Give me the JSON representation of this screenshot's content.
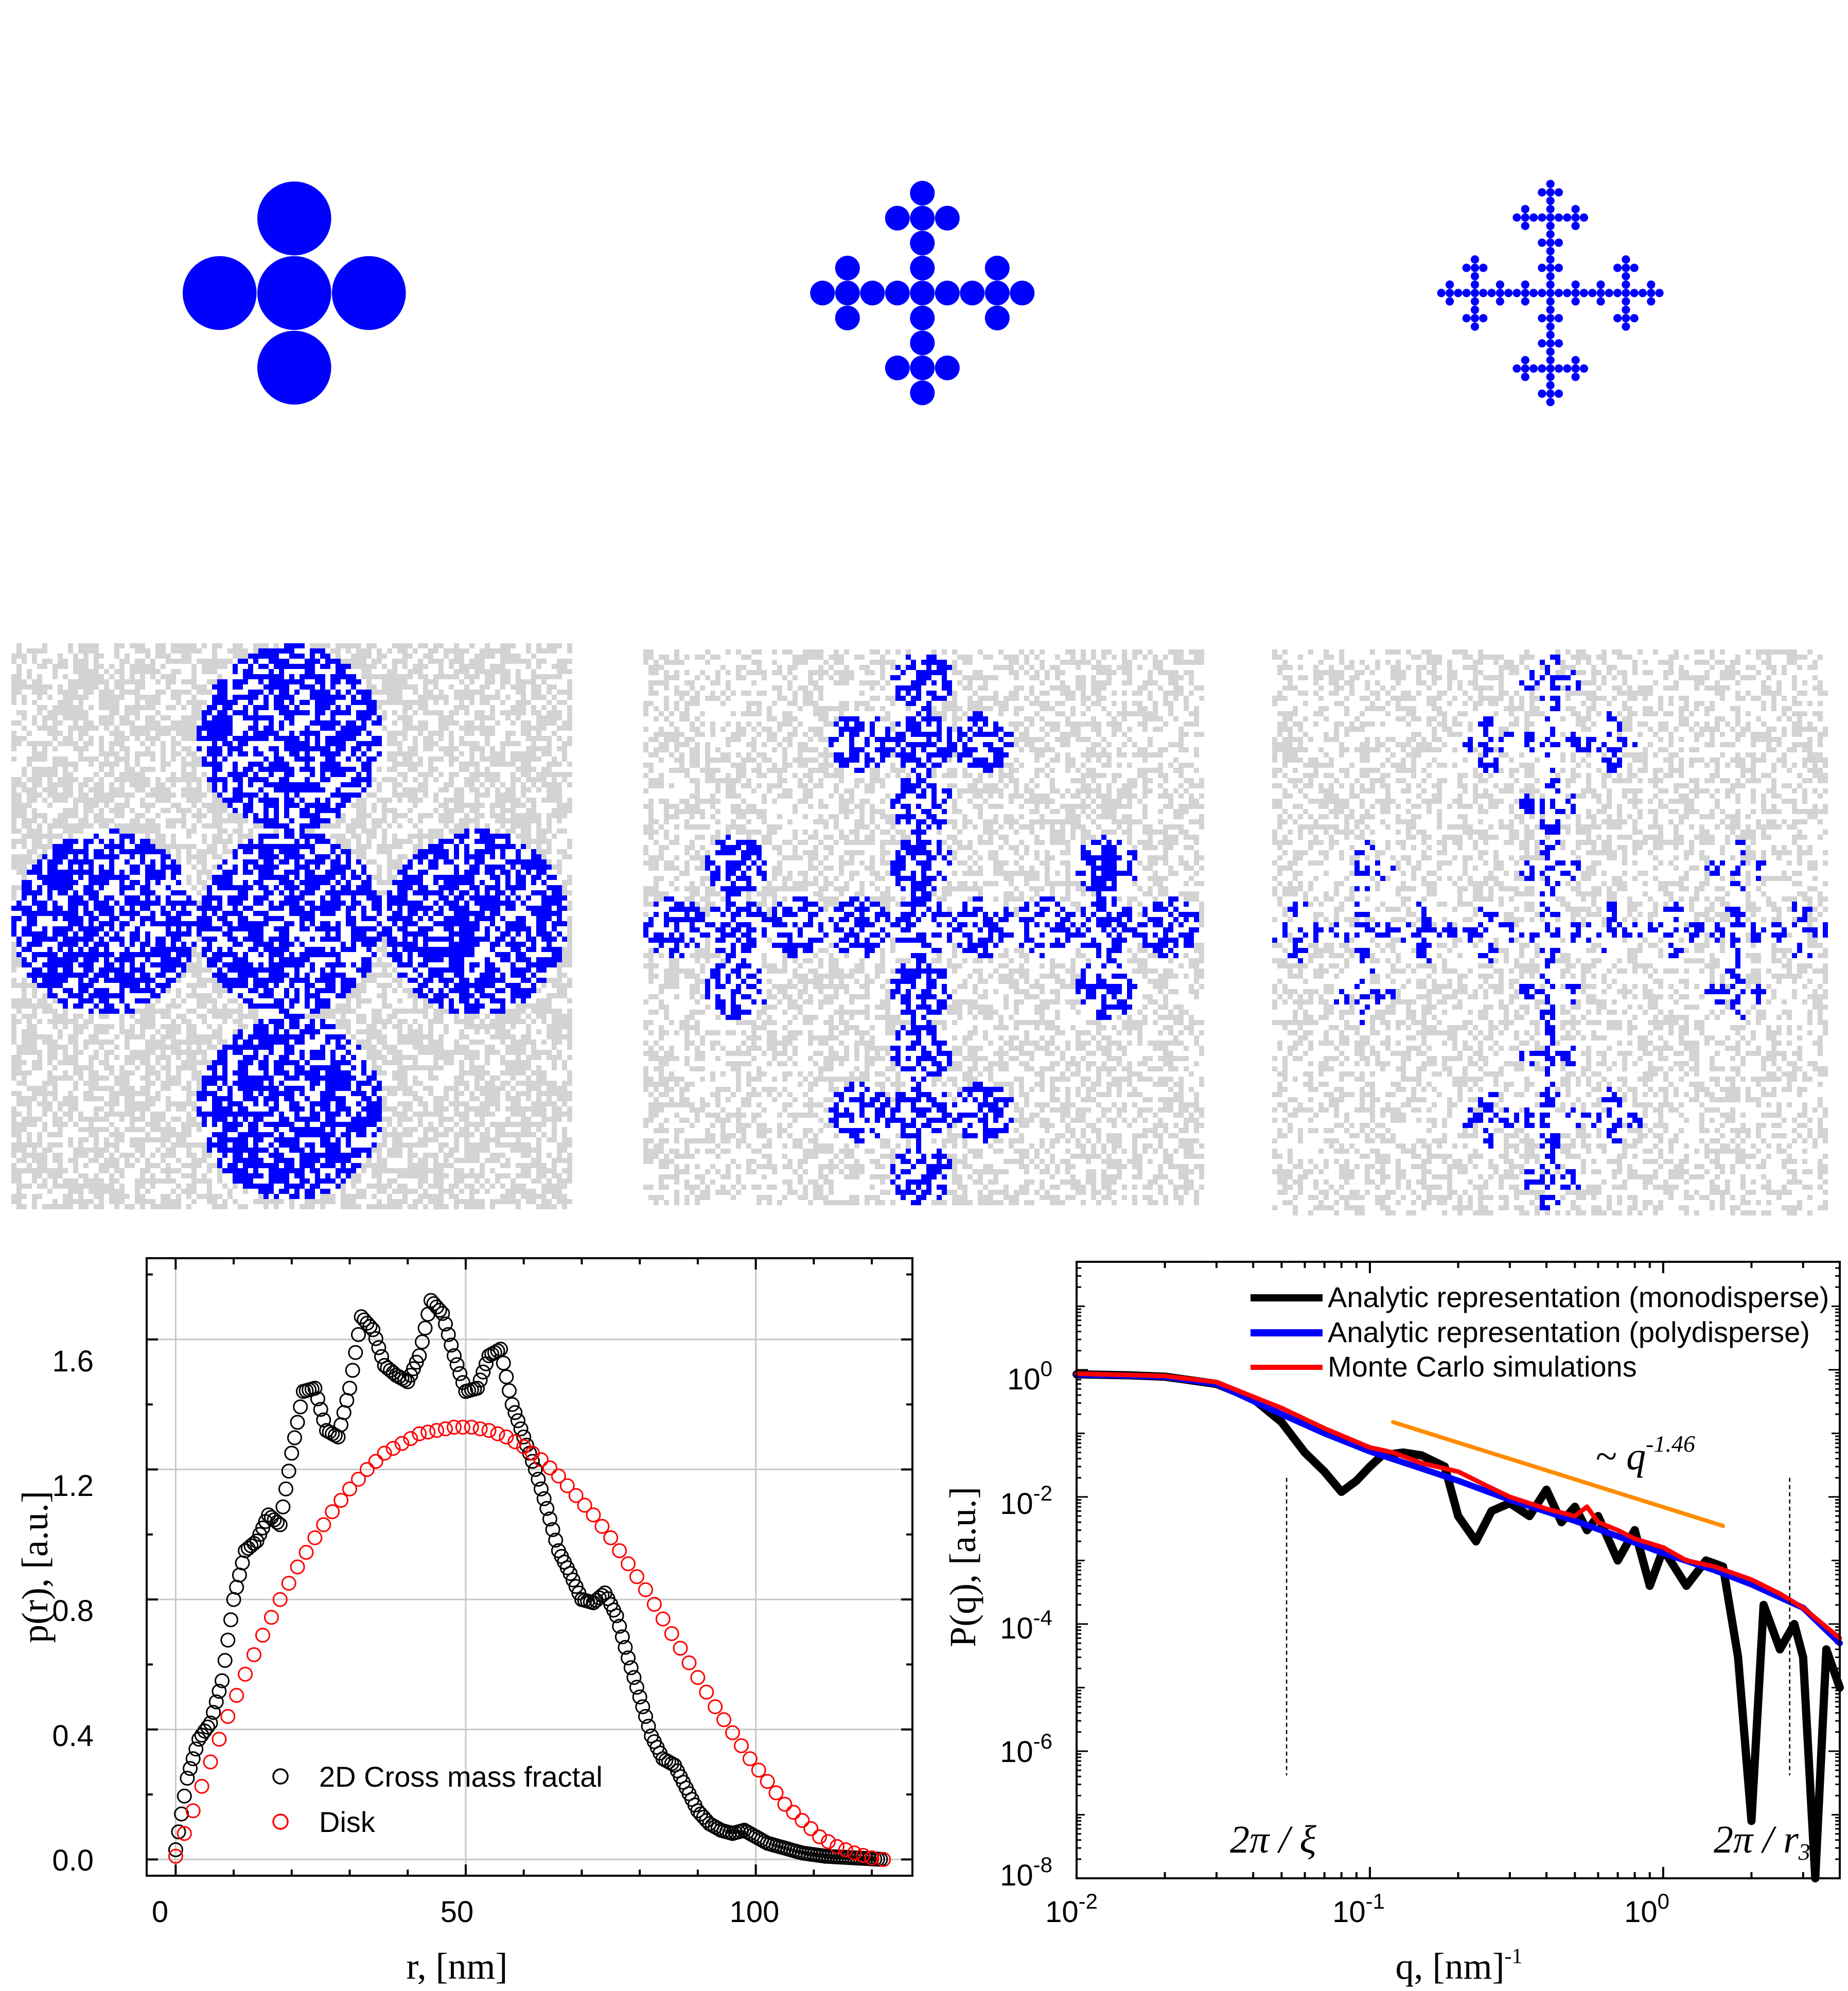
{
  "colors": {
    "fractal": "#0000ff",
    "noise": "#d3d3d3",
    "grid": "#c8c8c8",
    "black": "#000000",
    "red": "#ff0000",
    "blue": "#0000ff",
    "orange": "#ff8c00"
  },
  "panels": {
    "top_row": [
      "Cross mass fractal, iteration 1",
      "Cross mass fractal, iteration 2",
      "Cross mass fractal, iteration 3"
    ],
    "middle_row": [
      "Monte Carlo points, iteration 1",
      "Monte Carlo points, iteration 2",
      "Monte Carlo points, iteration 3"
    ]
  },
  "chart_data": [
    {
      "type": "scatter",
      "title": "",
      "xlabel": "r, [nm]",
      "ylabel": "p(r), [a.u.]",
      "xlim": [
        -5,
        127
      ],
      "ylim": [
        -0.05,
        1.85
      ],
      "xticks": [
        "0",
        "50",
        "100"
      ],
      "yticks": [
        "0.0",
        "0.4",
        "0.8",
        "1.2",
        "1.6"
      ],
      "grid": true,
      "legend_position": "bottom-left",
      "series": [
        {
          "name": "2D Cross mass fractal",
          "marker": "open-circle",
          "color": "#000000",
          "x": [
            0,
            2,
            4,
            6,
            8,
            10,
            12,
            14,
            16,
            18,
            20,
            22,
            24,
            26,
            28,
            30,
            32,
            34,
            36,
            38,
            40,
            42,
            44,
            46,
            48,
            50,
            52,
            54,
            56,
            58,
            60,
            62,
            64,
            66,
            68,
            70,
            72,
            74,
            76,
            78,
            80,
            82,
            84,
            86,
            88,
            90,
            92,
            94,
            96,
            98,
            100,
            102,
            104,
            106,
            108,
            110,
            112,
            114,
            116,
            118,
            120,
            122
          ],
          "y": [
            0.03,
            0.25,
            0.37,
            0.42,
            0.55,
            0.8,
            0.95,
            0.98,
            1.06,
            1.03,
            1.25,
            1.44,
            1.45,
            1.32,
            1.3,
            1.45,
            1.67,
            1.63,
            1.52,
            1.49,
            1.47,
            1.55,
            1.72,
            1.68,
            1.55,
            1.44,
            1.45,
            1.55,
            1.57,
            1.4,
            1.3,
            1.2,
            1.08,
            0.95,
            0.88,
            0.8,
            0.79,
            0.82,
            0.75,
            0.62,
            0.5,
            0.38,
            0.31,
            0.29,
            0.22,
            0.15,
            0.11,
            0.09,
            0.08,
            0.09,
            0.07,
            0.05,
            0.04,
            0.03,
            0.02,
            0.015,
            0.01,
            0.008,
            0.006,
            0.004,
            0.002,
            0.0
          ]
        },
        {
          "name": "Disk",
          "marker": "open-circle",
          "color": "#ff0000",
          "x": [
            0,
            3,
            6,
            9,
            12,
            15,
            18,
            21,
            24,
            27,
            30,
            33,
            36,
            39,
            42,
            45,
            48,
            51,
            54,
            57,
            60,
            63,
            66,
            69,
            72,
            75,
            78,
            81,
            84,
            87,
            90,
            93,
            96,
            99,
            102,
            105,
            108,
            111,
            114,
            117,
            120,
            122
          ],
          "y": [
            0.01,
            0.15,
            0.3,
            0.44,
            0.57,
            0.69,
            0.8,
            0.9,
            0.99,
            1.07,
            1.14,
            1.2,
            1.25,
            1.28,
            1.31,
            1.32,
            1.33,
            1.33,
            1.32,
            1.3,
            1.27,
            1.23,
            1.18,
            1.12,
            1.06,
            0.99,
            0.91,
            0.83,
            0.74,
            0.65,
            0.56,
            0.47,
            0.39,
            0.31,
            0.24,
            0.17,
            0.12,
            0.07,
            0.04,
            0.02,
            0.005,
            0.0
          ]
        }
      ]
    },
    {
      "type": "line",
      "title": "",
      "xlabel": "q, [nm]",
      "xlabel_sup": "-1",
      "ylabel": "P(q), [a.u.]",
      "xscale": "log",
      "yscale": "log",
      "xlim": [
        0.01,
        4
      ],
      "ylim": [
        1e-08,
        50
      ],
      "xticks": [
        {
          "base": "10",
          "exp": "-2"
        },
        {
          "base": "10",
          "exp": "-1"
        },
        {
          "base": "10",
          "exp": "0"
        }
      ],
      "yticks": [
        {
          "base": "10",
          "exp": "0"
        },
        {
          "base": "10",
          "exp": "-2"
        },
        {
          "base": "10",
          "exp": "-4"
        },
        {
          "base": "10",
          "exp": "-6"
        },
        {
          "base": "10",
          "exp": "-8"
        }
      ],
      "legend_position": "top-right",
      "series": [
        {
          "name": "Analytic representation (monodisperse)",
          "color": "#000000",
          "x": [
            0.01,
            0.015,
            0.02,
            0.03,
            0.04,
            0.05,
            0.06,
            0.07,
            0.08,
            0.09,
            0.1,
            0.11,
            0.13,
            0.15,
            0.18,
            0.2,
            0.23,
            0.26,
            0.3,
            0.35,
            0.4,
            0.45,
            0.5,
            0.55,
            0.6,
            0.7,
            0.8,
            0.9,
            1.0,
            1.2,
            1.4,
            1.6,
            1.8,
            2.0,
            2.2,
            2.5,
            2.8,
            3.0,
            3.3,
            3.6,
            4.0
          ],
          "y": [
            0.85,
            0.82,
            0.78,
            0.6,
            0.35,
            0.15,
            0.05,
            0.025,
            0.012,
            0.018,
            0.03,
            0.045,
            0.05,
            0.045,
            0.03,
            0.005,
            0.002,
            0.006,
            0.008,
            0.005,
            0.013,
            0.004,
            0.007,
            0.003,
            0.005,
            0.001,
            0.003,
            0.0004,
            0.0015,
            0.0004,
            0.001,
            0.0008,
            3e-05,
            8e-08,
            0.0002,
            4e-05,
            0.0001,
            3e-05,
            1e-08,
            4e-05,
            1e-05
          ]
        },
        {
          "name": "Analytic representation (polydisperse)",
          "color": "#0000ff",
          "x": [
            0.01,
            0.02,
            0.03,
            0.05,
            0.07,
            0.1,
            0.15,
            0.2,
            0.3,
            0.5,
            0.7,
            1.0,
            1.5,
            2.0,
            3.0,
            4.0
          ],
          "y": [
            0.85,
            0.78,
            0.6,
            0.2,
            0.1,
            0.052,
            0.028,
            0.018,
            0.009,
            0.0042,
            0.0024,
            0.0013,
            0.0007,
            0.00042,
            0.00018,
            5e-05
          ]
        },
        {
          "name": "Monte Carlo simulations",
          "color": "#ff0000",
          "x": [
            0.01,
            0.02,
            0.03,
            0.05,
            0.07,
            0.1,
            0.12,
            0.15,
            0.2,
            0.25,
            0.3,
            0.4,
            0.5,
            0.55,
            0.6,
            0.7,
            0.8,
            1.0,
            1.2,
            1.5,
            2.0,
            2.5,
            3.0,
            4.0
          ],
          "y": [
            0.87,
            0.8,
            0.64,
            0.25,
            0.12,
            0.06,
            0.05,
            0.034,
            0.025,
            0.015,
            0.01,
            0.0065,
            0.005,
            0.007,
            0.004,
            0.003,
            0.0022,
            0.0016,
            0.001,
            0.0008,
            0.0005,
            0.0003,
            0.00018,
            6e-05
          ]
        },
        {
          "name": "power-law guide",
          "color": "#ff8c00",
          "x": [
            0.12,
            1.6
          ],
          "y": [
            0.15,
            0.0035
          ]
        }
      ],
      "annotations": [
        {
          "text": "~ q",
          "exp": "-1.46"
        },
        {
          "text": "2π / ξ",
          "q": 0.052
        },
        {
          "text": "2π / r",
          "sub": "3",
          "q": 2.7
        }
      ]
    }
  ]
}
